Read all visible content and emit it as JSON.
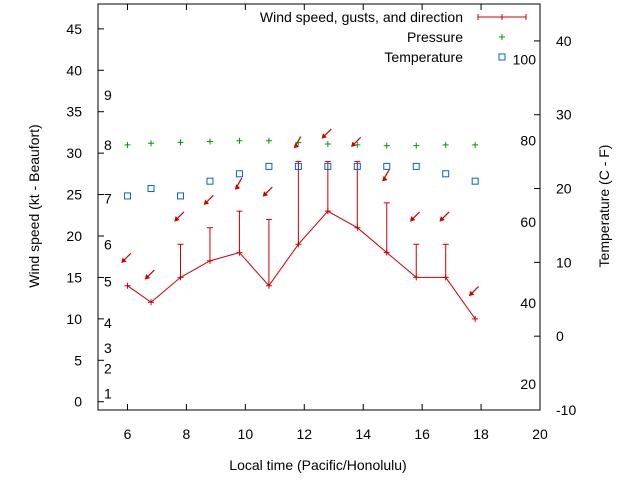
{
  "chart_data": {
    "type": "line",
    "xlabel": "Local time (Pacific/Honolulu)",
    "ylabel": "Wind speed (kt - Beaufort)",
    "y2label": "Temperature (C - F)",
    "xlim": [
      5,
      20
    ],
    "ylim": [
      -1,
      48
    ],
    "y2lim": [
      -10,
      45
    ],
    "x_ticks": [
      6,
      8,
      10,
      12,
      14,
      16,
      18,
      20
    ],
    "y_ticks": [
      0,
      5,
      10,
      15,
      20,
      25,
      30,
      35,
      40,
      45
    ],
    "y2_ticks": [
      -10,
      0,
      10,
      20,
      30,
      40
    ],
    "beaufort_labels": [
      {
        "label": "1",
        "y": 1
      },
      {
        "label": "2",
        "y": 4
      },
      {
        "label": "3",
        "y": 6.5
      },
      {
        "label": "4",
        "y": 9.5
      },
      {
        "label": "5",
        "y": 14.5
      },
      {
        "label": "6",
        "y": 19
      },
      {
        "label": "7",
        "y": 24.5
      },
      {
        "label": "8",
        "y": 31
      },
      {
        "label": "9",
        "y": 37
      }
    ],
    "fahrenheit_labels": [
      {
        "label": "20",
        "y2": -6.5
      },
      {
        "label": "40",
        "y2": 4.5
      },
      {
        "label": "60",
        "y2": 15.5
      },
      {
        "label": "80",
        "y2": 26.5
      },
      {
        "label": "100",
        "y2": 37.5
      }
    ],
    "legend": {
      "position": "top-right",
      "entries": [
        "Wind speed, gusts, and direction",
        "Pressure",
        "Temperature"
      ]
    },
    "colors": {
      "wind": "#cc0000",
      "pressure": "#009900",
      "temperature": "#0066cc"
    },
    "series": [
      {
        "name": "Wind speed, gusts, and direction",
        "x": [
          6,
          6.8,
          7.8,
          8.8,
          9.8,
          10.8,
          11.8,
          12.8,
          13.8,
          14.8,
          15.8,
          16.8,
          17.8
        ],
        "speed": [
          14,
          12,
          15,
          17,
          18,
          14,
          19,
          23,
          21,
          18,
          15,
          15,
          10
        ],
        "gust": [
          14,
          12,
          19,
          21,
          23,
          22,
          29,
          29,
          29,
          24,
          19,
          19,
          10
        ],
        "direction_deg": [
          45,
          45,
          45,
          45,
          60,
          45,
          60,
          45,
          45,
          60,
          45,
          45,
          45
        ],
        "arrow_y": [
          17.5,
          15.5,
          22.5,
          24.5,
          26.5,
          25.5,
          31.5,
          32.5,
          31.5,
          27.5,
          22.5,
          22.5,
          13.5
        ]
      },
      {
        "name": "Pressure",
        "x": [
          6,
          6.8,
          7.8,
          8.8,
          9.8,
          10.8,
          11.8,
          12.8,
          13.8,
          14.8,
          15.8,
          16.8,
          17.8
        ],
        "values": [
          31,
          31.2,
          31.3,
          31.4,
          31.5,
          31.5,
          31.3,
          31.1,
          31,
          30.9,
          30.9,
          31,
          31
        ]
      },
      {
        "name": "Temperature",
        "x": [
          6,
          6.8,
          7.8,
          8.8,
          9.8,
          10.8,
          11.8,
          12.8,
          13.8,
          14.8,
          15.8,
          16.8,
          17.8
        ],
        "values": [
          19,
          20,
          19,
          21,
          22,
          23,
          23,
          23,
          23,
          23,
          23,
          22,
          21
        ]
      }
    ]
  }
}
